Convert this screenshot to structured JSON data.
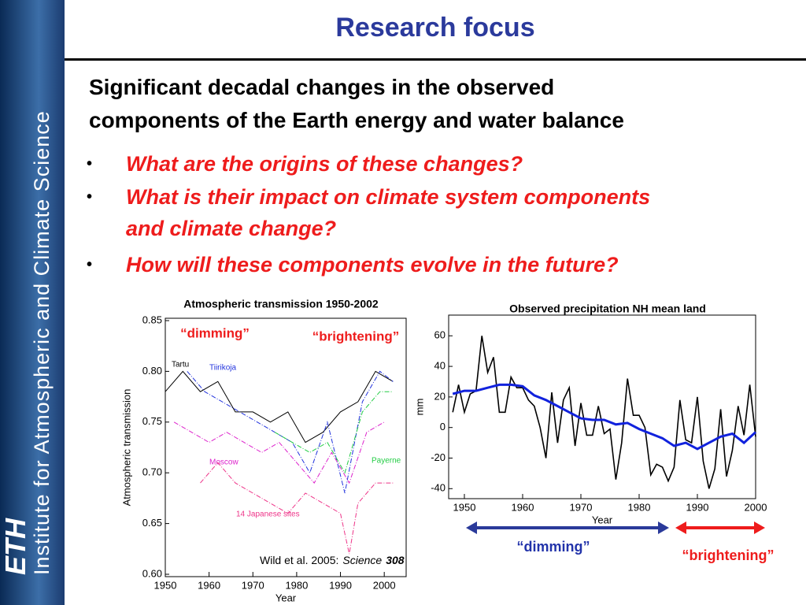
{
  "sidebar": {
    "logo": "ETH",
    "institute": "Institute for Atmospheric and Climate Science"
  },
  "header": {
    "title": "Research focus"
  },
  "heading": [
    "Significant decadal changes in the observed",
    "components of the Earth energy and water balance"
  ],
  "bullets": [
    [
      "What are the origins of these changes?"
    ],
    [
      "What is their impact on climate system components",
      "and climate change?"
    ],
    [
      "How will these components evolve in the future?"
    ]
  ],
  "chart_data": [
    {
      "type": "line",
      "title": "Atmospheric transmission 1950-2002",
      "xlabel": "Year",
      "ylabel": "Atmospheric transmission",
      "xlim": [
        1950,
        2005
      ],
      "ylim": [
        0.6,
        0.85
      ],
      "xticks": [
        1950,
        1960,
        1970,
        1980,
        1990,
        2000
      ],
      "yticks": [
        {
          "value": 0.6,
          "label": "0.60"
        },
        0.65,
        {
          "value": 0.7,
          "label": "0.70"
        },
        0.75,
        {
          "value": 0.8,
          "label": "0.80"
        },
        0.85
      ],
      "series": [
        {
          "name": "Tartu",
          "color": "#000000",
          "x": [
            1950,
            1954,
            1958,
            1962,
            1966,
            1970,
            1974,
            1978,
            1982,
            1986,
            1990,
            1994,
            1998,
            2002
          ],
          "values": [
            0.78,
            0.8,
            0.78,
            0.79,
            0.76,
            0.76,
            0.75,
            0.76,
            0.73,
            0.74,
            0.76,
            0.77,
            0.8,
            0.79
          ]
        },
        {
          "name": "Tiirikoja",
          "color": "#2233dd",
          "x": [
            1955,
            1959,
            1963,
            1967,
            1971,
            1975,
            1979,
            1983,
            1987,
            1991,
            1995,
            1999,
            2002
          ],
          "values": [
            0.8,
            0.78,
            0.77,
            0.76,
            0.75,
            0.74,
            0.73,
            0.7,
            0.75,
            0.68,
            0.77,
            0.8,
            0.79
          ]
        },
        {
          "name": "Moscow",
          "color": "#dd22cc",
          "x": [
            1952,
            1956,
            1960,
            1964,
            1968,
            1972,
            1976,
            1980,
            1984,
            1988,
            1992,
            1996,
            2000
          ],
          "values": [
            0.75,
            0.74,
            0.73,
            0.74,
            0.73,
            0.72,
            0.73,
            0.71,
            0.69,
            0.72,
            0.69,
            0.74,
            0.75
          ]
        },
        {
          "name": "Payerne",
          "color": "#22cc44",
          "x": [
            1975,
            1979,
            1983,
            1987,
            1991,
            1995,
            1999,
            2002
          ],
          "values": [
            0.74,
            0.73,
            0.72,
            0.73,
            0.7,
            0.76,
            0.78,
            0.78
          ]
        },
        {
          "name": "14 Japanese sites",
          "color": "#ee3388",
          "x": [
            1958,
            1962,
            1966,
            1970,
            1974,
            1978,
            1982,
            1986,
            1990,
            1992,
            1994,
            1998,
            2002
          ],
          "values": [
            0.69,
            0.71,
            0.69,
            0.68,
            0.67,
            0.66,
            0.68,
            0.67,
            0.66,
            0.62,
            0.67,
            0.69,
            0.69
          ]
        }
      ],
      "annotations": [
        "“dimming”",
        "“brightening”"
      ],
      "citation": {
        "text": "Wild et al. 2005:",
        "journal": "Science",
        "volume": "308"
      }
    },
    {
      "type": "line",
      "title": "Observed precipitation NH mean land",
      "xlabel": "Year",
      "ylabel": "mm",
      "xlim": [
        1947.3,
        2000
      ],
      "ylim": [
        -45,
        72
      ],
      "xticks": [
        1950,
        1960,
        1970,
        1980,
        1990,
        2000
      ],
      "yticks": [
        -40,
        -20,
        0,
        20,
        40,
        60
      ],
      "series": [
        {
          "color": "#000000",
          "x": [
            1948,
            1949,
            1950,
            1951,
            1952,
            1953,
            1954,
            1955,
            1956,
            1957,
            1958,
            1959,
            1960,
            1961,
            1962,
            1963,
            1964,
            1965,
            1966,
            1967,
            1968,
            1969,
            1970,
            1971,
            1972,
            1973,
            1974,
            1975,
            1976,
            1977,
            1978,
            1979,
            1980,
            1981,
            1982,
            1983,
            1984,
            1985,
            1986,
            1987,
            1988,
            1989,
            1990,
            1991,
            1992,
            1993,
            1994,
            1995,
            1996,
            1997,
            1998,
            1999,
            2000
          ],
          "values": [
            10,
            28,
            10,
            22,
            24,
            60,
            36,
            46,
            10,
            10,
            33,
            26,
            26,
            18,
            14,
            0,
            -20,
            23,
            -10,
            18,
            26,
            -12,
            16,
            -5,
            -5,
            14,
            -4,
            -1,
            -34,
            -10,
            32,
            8,
            8,
            0,
            -31,
            -24,
            -26,
            -35,
            -26,
            18,
            -8,
            -10,
            20,
            -22,
            -40,
            -27,
            12,
            -32,
            -15,
            14,
            -5,
            28,
            -6
          ]
        },
        {
          "color": "#1122dd",
          "x": [
            1948,
            1950,
            1952,
            1954,
            1956,
            1958,
            1960,
            1962,
            1964,
            1966,
            1968,
            1970,
            1972,
            1974,
            1976,
            1978,
            1980,
            1982,
            1984,
            1986,
            1988,
            1990,
            1992,
            1994,
            1996,
            1998,
            2000
          ],
          "values": [
            22,
            24,
            24,
            26,
            28,
            28,
            27,
            21,
            18,
            14,
            10,
            6,
            5,
            5,
            2,
            3,
            -1,
            -4,
            -7,
            -12,
            -10,
            -14,
            -10,
            -6,
            -4,
            -10,
            -3
          ]
        }
      ],
      "annotations": [
        "“dimming”",
        "“brightening”"
      ]
    }
  ]
}
